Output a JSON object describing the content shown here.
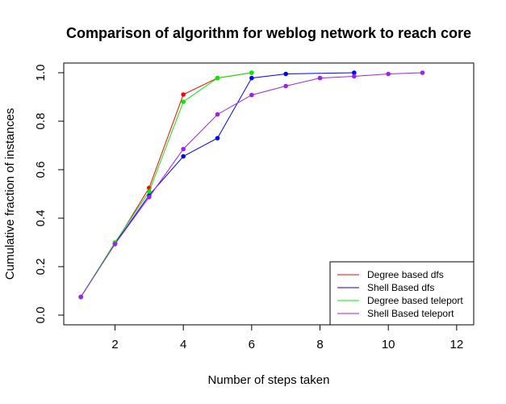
{
  "chart_data": {
    "type": "line",
    "title": "Comparison of algorithm for weblog network to reach core",
    "xlabel": "Number of steps taken",
    "ylabel": "Cumulative fraction of instances",
    "xlim": [
      0.5,
      12.5
    ],
    "ylim": [
      -0.04,
      1.04
    ],
    "xticks": [
      2,
      4,
      6,
      8,
      10,
      12
    ],
    "xtick_labels": [
      "2",
      "4",
      "6",
      "8",
      "10",
      "12"
    ],
    "yticks": [
      0.0,
      0.2,
      0.4,
      0.6,
      0.8,
      1.0
    ],
    "ytick_labels": [
      "0.0",
      "0.2",
      "0.4",
      "0.6",
      "0.8",
      "1.0"
    ],
    "grid": false,
    "legend_position": "bottom-right",
    "series": [
      {
        "name": "Degree based dfs",
        "color": "#ff0000",
        "x": [
          1,
          2,
          3,
          4,
          5,
          6
        ],
        "y": [
          0.075,
          0.295,
          0.525,
          0.91,
          0.978,
          1.0
        ]
      },
      {
        "name": "Shell Based dfs",
        "color": "#0000ff",
        "x": [
          1,
          2,
          3,
          4,
          5,
          6,
          7,
          9
        ],
        "y": [
          0.075,
          0.295,
          0.495,
          0.655,
          0.73,
          0.978,
          0.995,
          1.0
        ]
      },
      {
        "name": "Degree based teleport",
        "color": "#00ee00",
        "x": [
          1,
          2,
          3,
          4,
          5,
          6
        ],
        "y": [
          0.075,
          0.3,
          0.51,
          0.88,
          0.978,
          1.0
        ]
      },
      {
        "name": "Shell Based teleport",
        "color": "#a020f0",
        "x": [
          1,
          2,
          3,
          4,
          5,
          6,
          7,
          8,
          9,
          10,
          11
        ],
        "y": [
          0.075,
          0.293,
          0.487,
          0.685,
          0.828,
          0.908,
          0.945,
          0.978,
          0.985,
          0.995,
          1.0
        ]
      }
    ]
  }
}
